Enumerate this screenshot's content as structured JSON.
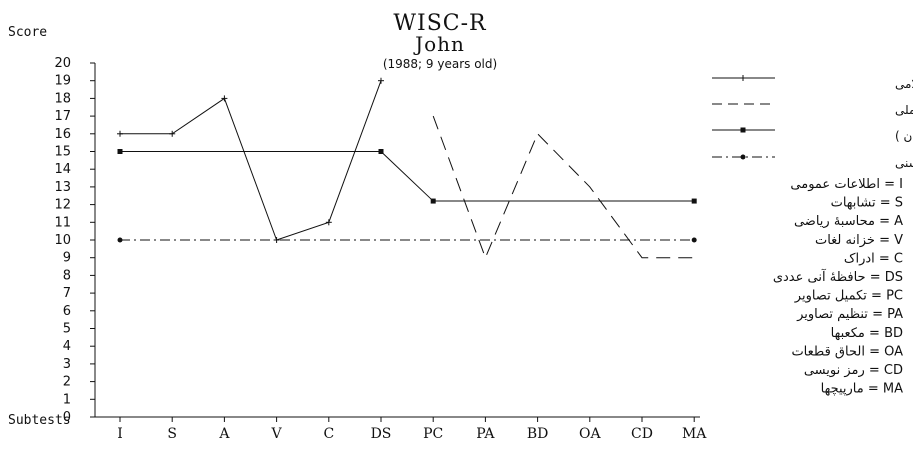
{
  "chart_data": {
    "type": "line",
    "title": "WISC-R",
    "subtitle": "John",
    "note": "(1988; 9 years old)",
    "ylabel": "Score",
    "xlabel": "Subtests",
    "ylim": [
      0,
      20
    ],
    "yticks": [
      0,
      1,
      2,
      3,
      4,
      5,
      6,
      7,
      8,
      9,
      10,
      11,
      12,
      13,
      14,
      15,
      16,
      17,
      18,
      19,
      20
    ],
    "categories": [
      "I",
      "S",
      "A",
      "V",
      "C",
      "DS",
      "PC",
      "PA",
      "BD",
      "OA",
      "CD",
      "MA"
    ],
    "series": [
      {
        "name": "کلامی",
        "style": "solid-plus",
        "values": [
          16,
          16,
          18,
          10,
          11,
          19,
          null,
          null,
          null,
          null,
          null,
          null
        ]
      },
      {
        "name": "عملی",
        "style": "dashed",
        "values": [
          null,
          null,
          null,
          null,
          null,
          null,
          17,
          9,
          16,
          13,
          9,
          9
        ]
      },
      {
        "name": "میانگین ( جان )",
        "style": "solid-square",
        "values": [
          15,
          15,
          15,
          15,
          15,
          15,
          12.2,
          12.2,
          12.2,
          12.2,
          12.2,
          12.2
        ]
      },
      {
        "name": "میانگین گروه سنی",
        "style": "dashdot-dot",
        "values": [
          10,
          10,
          10,
          10,
          10,
          10,
          10,
          10,
          10,
          10,
          10,
          10
        ]
      }
    ],
    "show_markers": [
      [
        0,
        1,
        2,
        3,
        4,
        5
      ],
      [],
      [
        0,
        5,
        6,
        11
      ],
      [
        0,
        11
      ]
    ],
    "abbreviations": [
      "اطلاعات عمومی = I",
      "تشابهات = S",
      "محاسبهٔ ریاضی = A",
      "خزانه لغات = V",
      "ادراک = C",
      "حافظهٔ آنی عددی = DS",
      "تکمیل تصاویر = PC",
      "تنظیم تصاویر = PA",
      "مکعبها = BD",
      "الحاق قطعات = OA",
      "رمز نویسی = CD",
      "مارپیچها = MA"
    ],
    "grid": false,
    "legend_position": "right"
  }
}
